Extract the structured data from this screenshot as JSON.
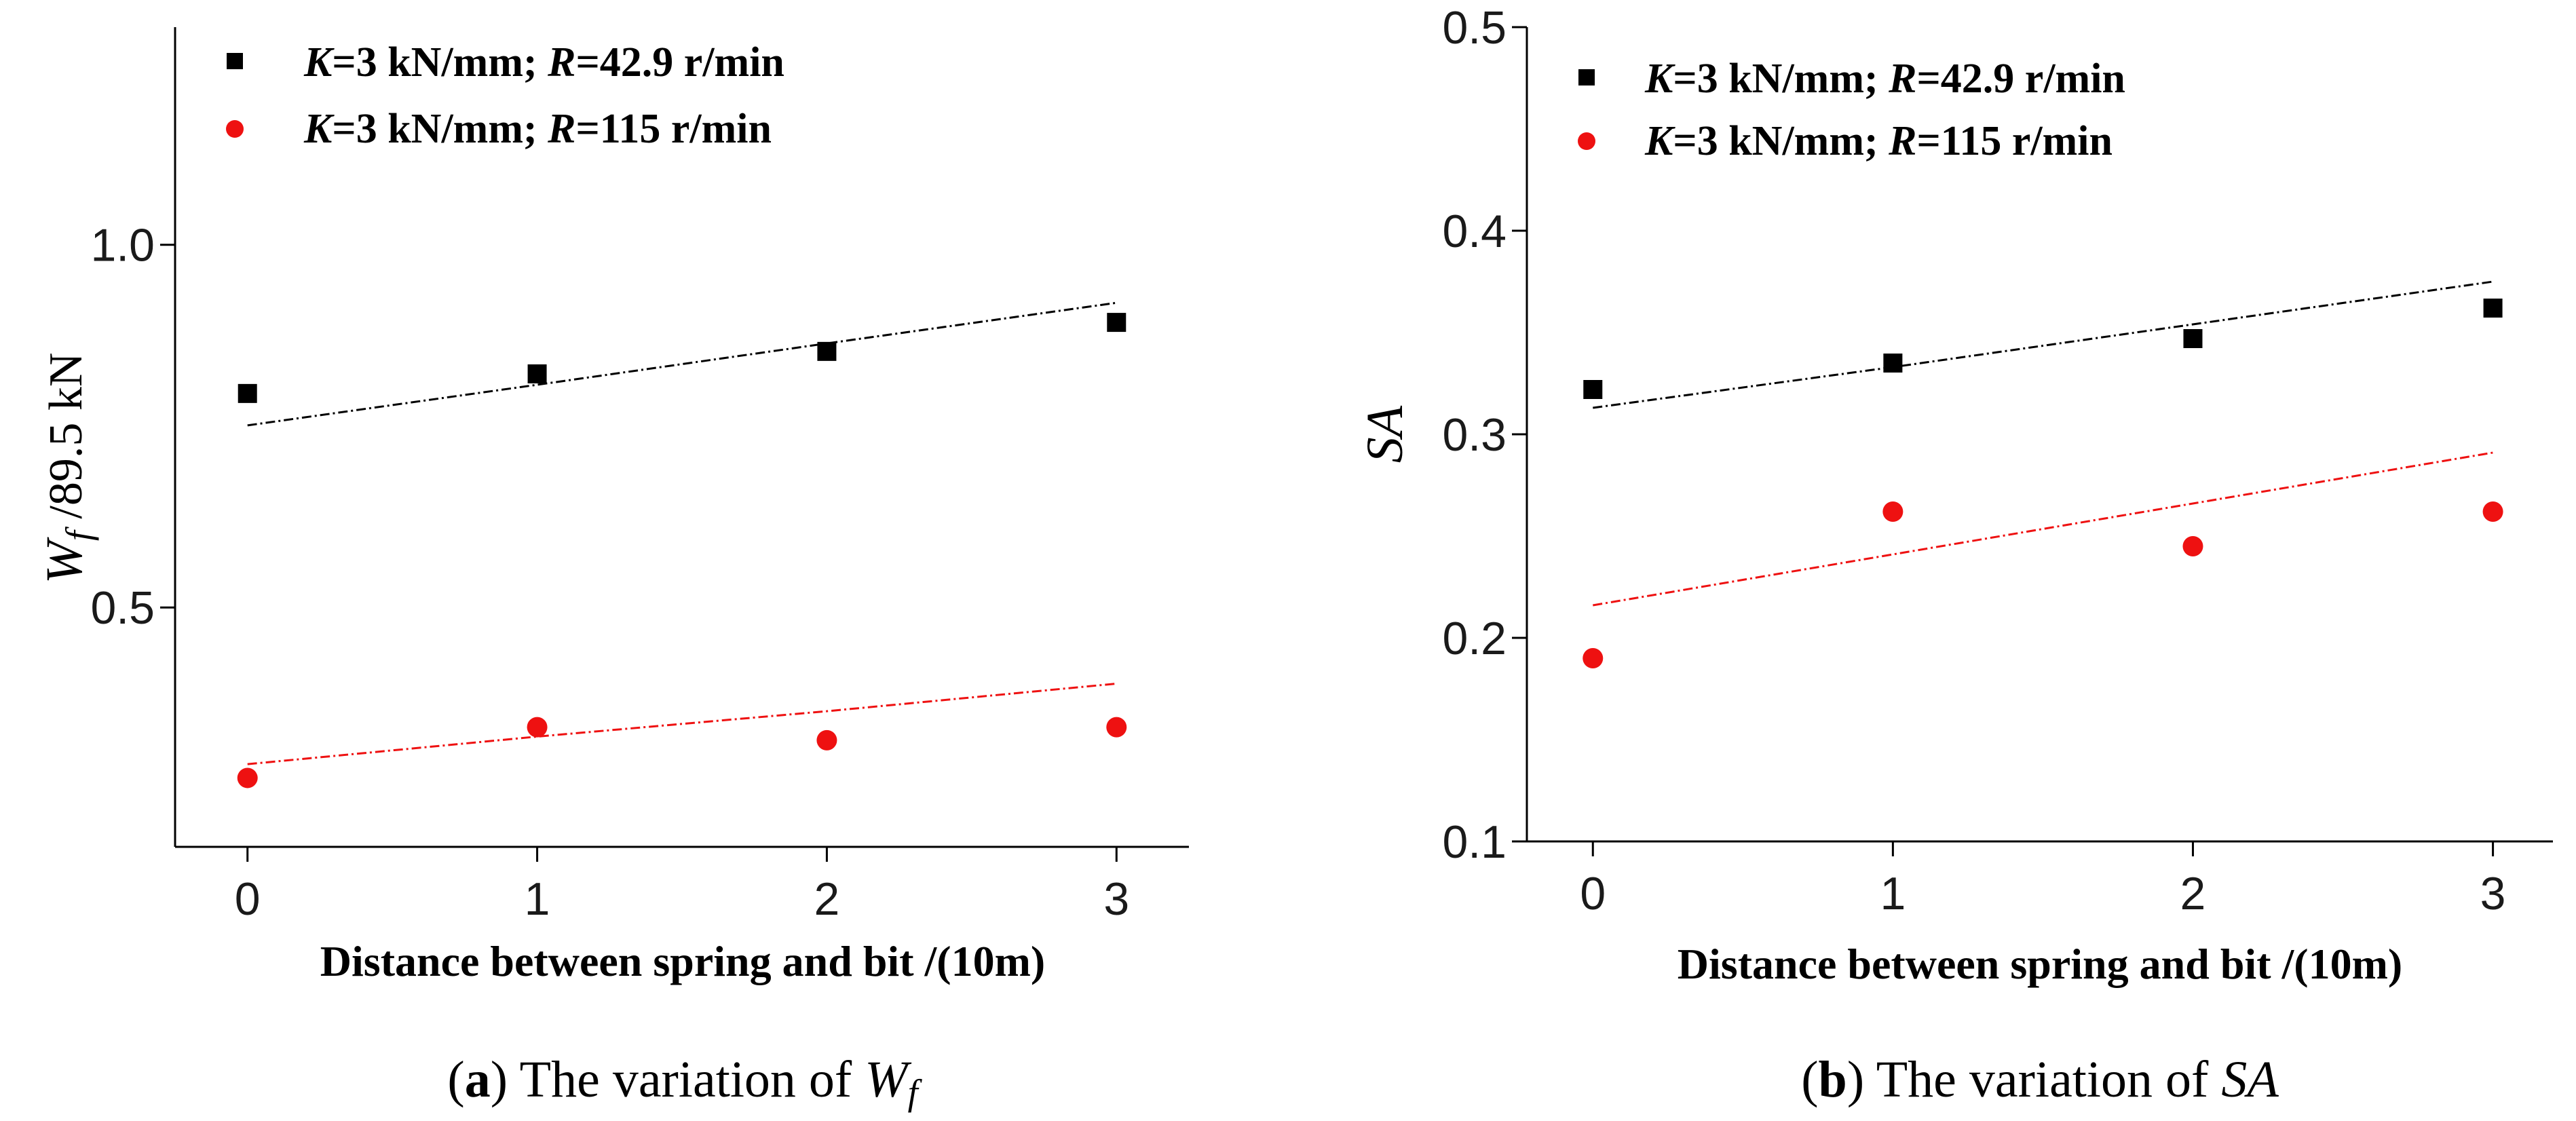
{
  "chart_data": [
    {
      "type": "scatter",
      "panel": "a",
      "title": "",
      "ylabel_main": "W",
      "ylabel_sub": "f",
      "ylabel_rest": " /89.5 kN",
      "xlabel": "Distance between spring and bit /(10m)",
      "x": [
        0,
        1,
        2,
        3
      ],
      "xlim": [
        -0.25,
        3.25
      ],
      "ylim": [
        0.17,
        1.3
      ],
      "xticks": [
        "0",
        "1",
        "2",
        "3"
      ],
      "yticks": [
        {
          "v": 0.5,
          "label": "0.5"
        },
        {
          "v": 1.0,
          "label": "1.0"
        }
      ],
      "series": [
        {
          "name_k": "K",
          "name_mid": "=3 kN/mm; ",
          "name_r": "R",
          "name_end": "=42.9 r/min",
          "marker": "square",
          "color": "#000000",
          "values": [
            0.795,
            0.822,
            0.853,
            0.893
          ],
          "fit": [
            0.751,
            0.807,
            0.864,
            0.92
          ]
        },
        {
          "name_k": "K",
          "name_mid": "=3 kN/mm; ",
          "name_r": "R",
          "name_end": "=115 r/min",
          "marker": "circle",
          "color": "#ee1111",
          "values": [
            0.265,
            0.335,
            0.317,
            0.335
          ],
          "fit": [
            0.284,
            0.322,
            0.357,
            0.395
          ]
        }
      ]
    },
    {
      "type": "scatter",
      "panel": "b",
      "title": "",
      "ylabel_main": "SA",
      "ylabel_sub": "",
      "ylabel_rest": "",
      "xlabel": "Distance between spring and bit /(10m)",
      "x": [
        0,
        1,
        2,
        3
      ],
      "xlim": [
        -0.22,
        3.2
      ],
      "ylim": [
        0.1,
        0.5
      ],
      "xticks": [
        "0",
        "1",
        "2",
        "3"
      ],
      "yticks": [
        {
          "v": 0.1,
          "label": "0.1"
        },
        {
          "v": 0.2,
          "label": "0.2"
        },
        {
          "v": 0.3,
          "label": "0.3"
        },
        {
          "v": 0.4,
          "label": "0.4"
        },
        {
          "v": 0.5,
          "label": "0.5"
        }
      ],
      "series": [
        {
          "name_k": "K",
          "name_mid": "=3 kN/mm; ",
          "name_r": "R",
          "name_end": "=42.9 r/min",
          "marker": "square",
          "color": "#000000",
          "values": [
            0.322,
            0.335,
            0.347,
            0.362
          ],
          "fit": [
            0.313,
            0.333,
            0.354,
            0.375
          ]
        },
        {
          "name_k": "K",
          "name_mid": "=3 kN/mm; ",
          "name_r": "R",
          "name_end": "=115 r/min",
          "marker": "circle",
          "color": "#ee1111",
          "values": [
            0.19,
            0.262,
            0.245,
            0.262
          ],
          "fit": [
            0.216,
            0.241,
            0.266,
            0.291
          ]
        }
      ]
    }
  ],
  "captions": {
    "a": {
      "letter": "a",
      "text": " The variation of ",
      "var": "W",
      "sub": "f"
    },
    "b": {
      "letter": "b",
      "text": " The variation of ",
      "var": "SA",
      "sub": ""
    }
  }
}
